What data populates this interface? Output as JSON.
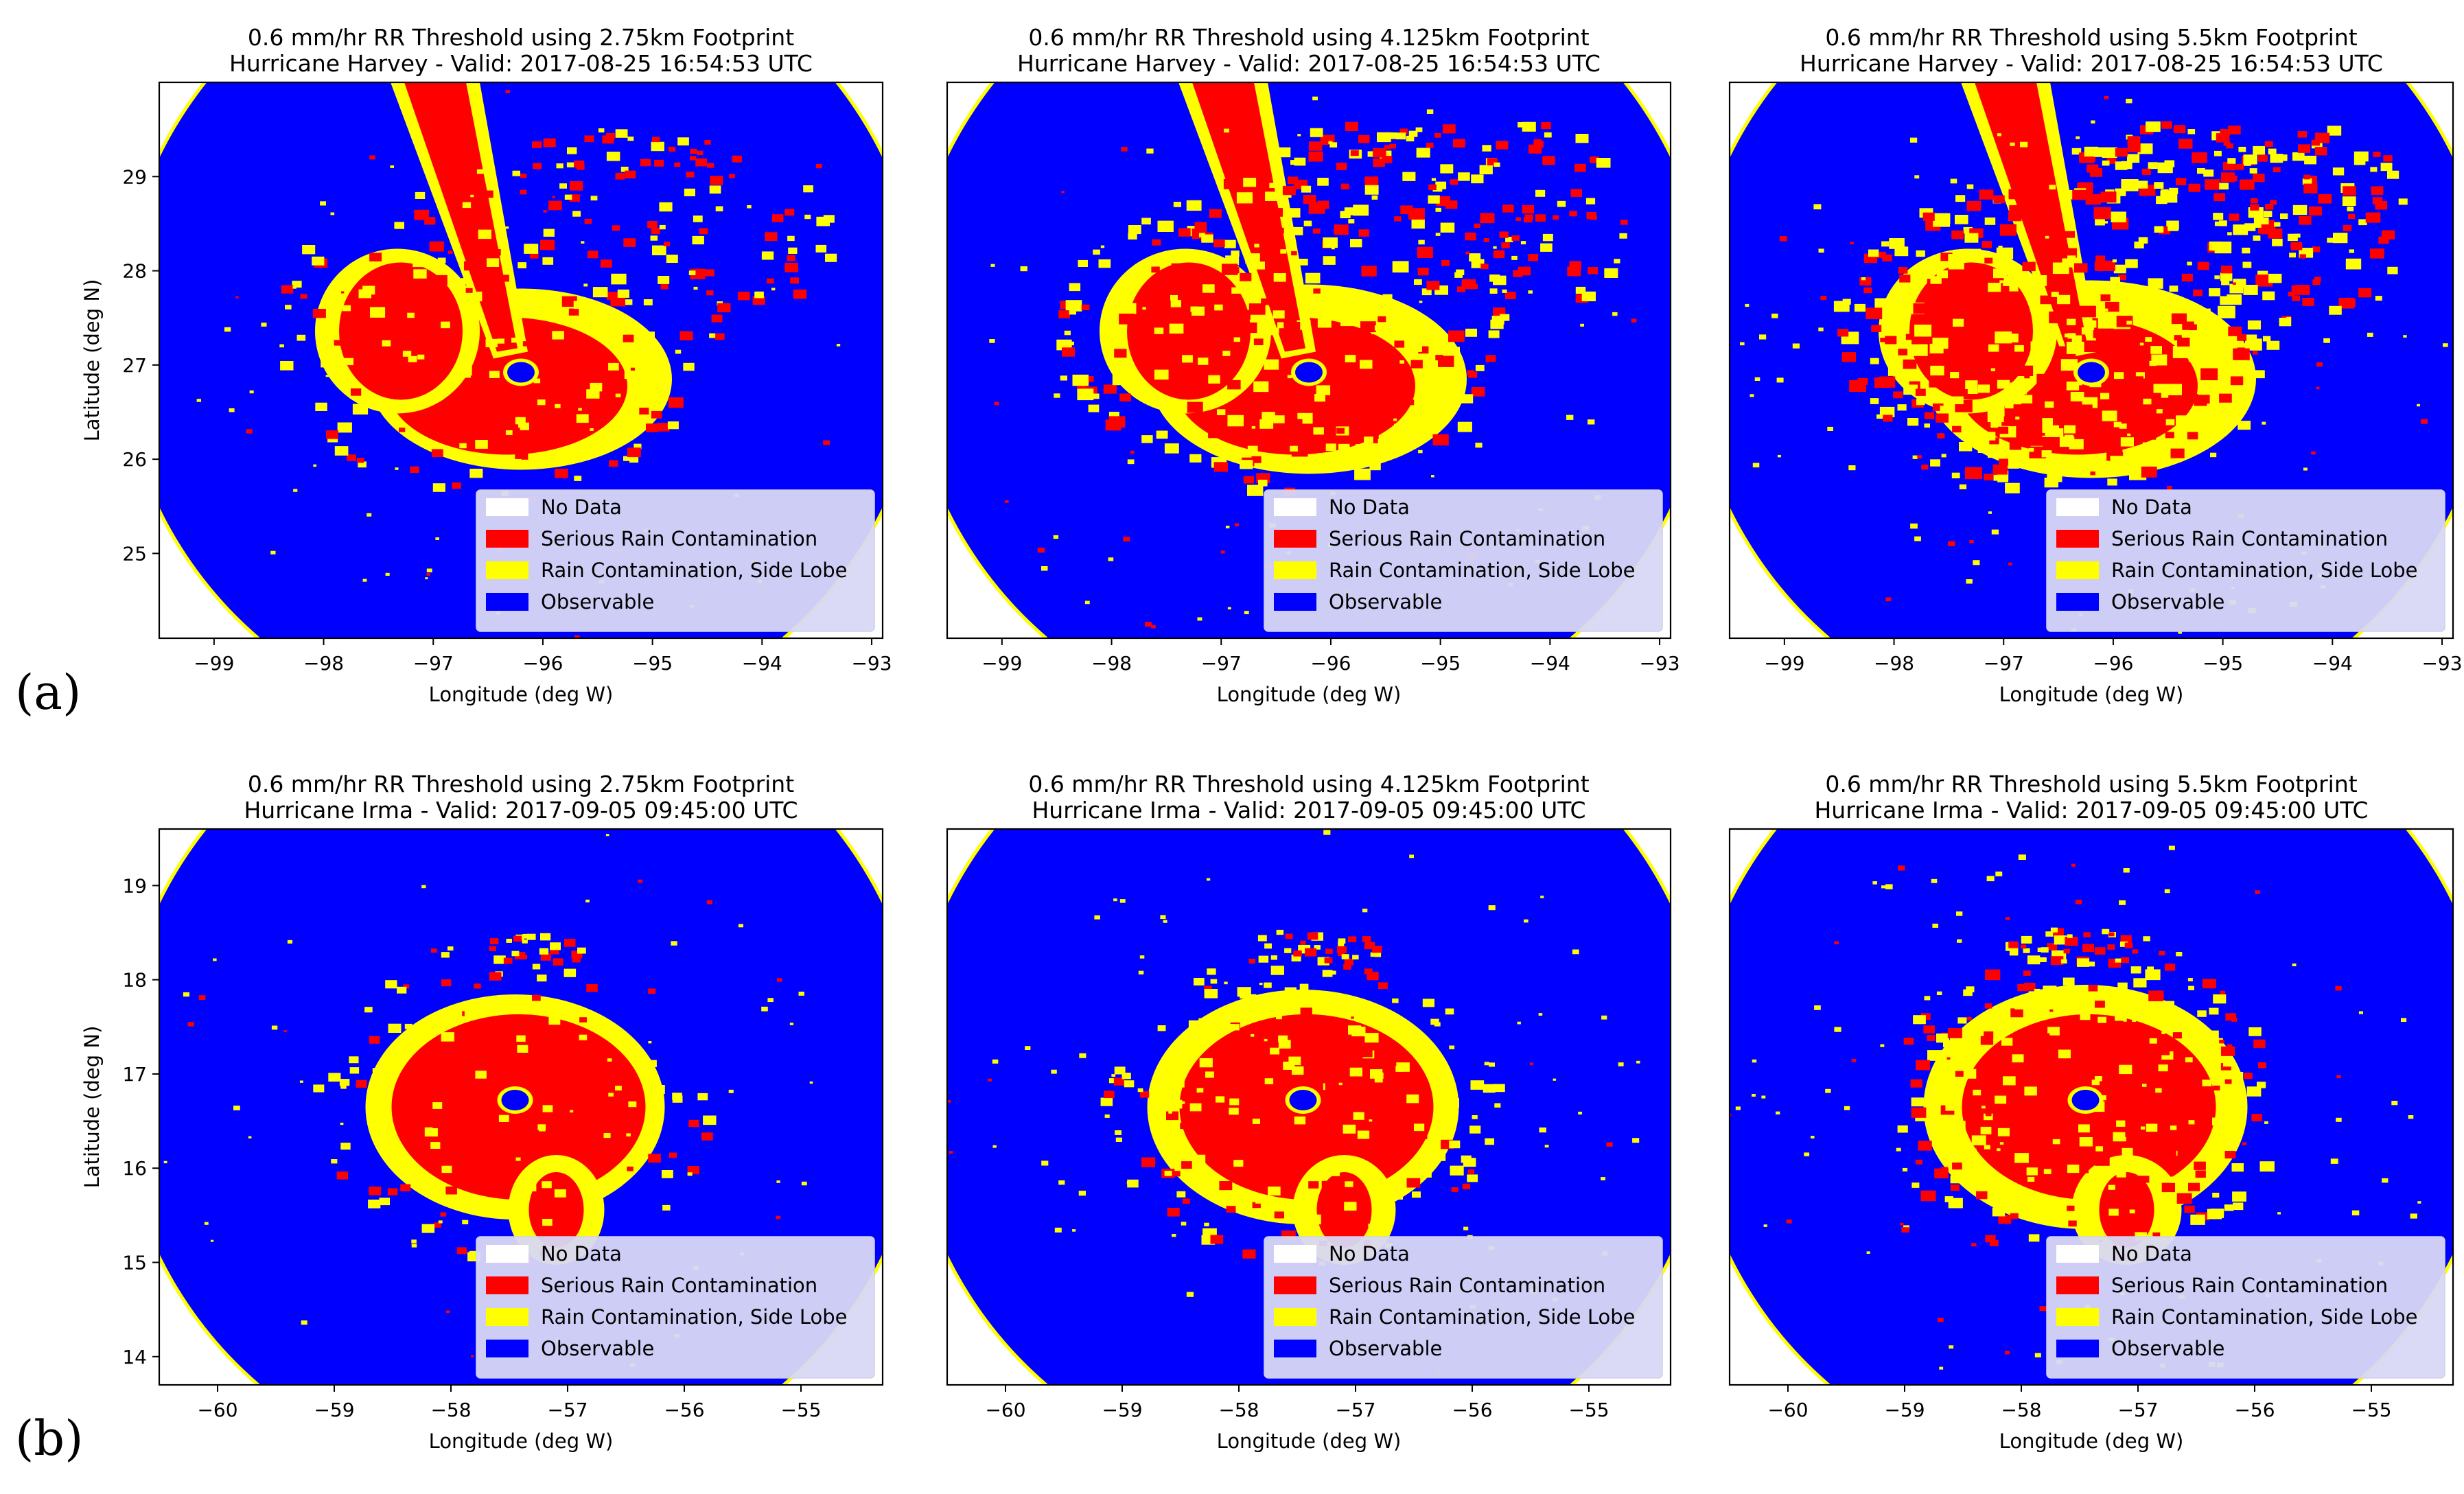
{
  "figure": {
    "row_labels": [
      "(a)",
      "(b)"
    ]
  },
  "colors": {
    "no_data": "#ffffff",
    "serious": "#ff0000",
    "side_lobe": "#ffff00",
    "observable": "#0000ff",
    "legend_bg": "#d8d8f6"
  },
  "chart_data": [
    {
      "type": "heatmap",
      "title": "0.6 mm/hr RR Threshold using 2.75km Footprint",
      "subtitle": "Hurricane Harvey - Valid: 2017-08-25 16:54:53 UTC",
      "xlabel": "Longitude (deg W)",
      "ylabel": "Latitude (deg N)",
      "xlim": [
        -99.5,
        -92.9
      ],
      "ylim": [
        24.1,
        30.0
      ],
      "xticks": [
        -99,
        -98,
        -97,
        -96,
        -95,
        -94,
        -93
      ],
      "yticks": [
        25,
        26,
        27,
        28,
        29
      ],
      "show_ylabel": true,
      "footprint_km": 2.75,
      "center": [
        -96.2,
        26.85
      ],
      "legend": [
        "No Data",
        "Serious Rain Contamination",
        "Rain Contamination, Side Lobe",
        "Observable"
      ],
      "legend_loc": "lower-right"
    },
    {
      "type": "heatmap",
      "title": "0.6 mm/hr RR Threshold using 4.125km Footprint",
      "subtitle": "Hurricane Harvey - Valid: 2017-08-25 16:54:53 UTC",
      "xlabel": "Longitude (deg W)",
      "ylabel": "",
      "xlim": [
        -99.5,
        -92.9
      ],
      "ylim": [
        24.1,
        30.0
      ],
      "xticks": [
        -99,
        -98,
        -97,
        -96,
        -95,
        -94,
        -93
      ],
      "yticks": [],
      "show_ylabel": false,
      "footprint_km": 4.125,
      "center": [
        -96.2,
        26.85
      ],
      "legend": [
        "No Data",
        "Serious Rain Contamination",
        "Rain Contamination, Side Lobe",
        "Observable"
      ],
      "legend_loc": "lower-right"
    },
    {
      "type": "heatmap",
      "title": "0.6 mm/hr RR Threshold using 5.5km Footprint",
      "subtitle": "Hurricane Harvey - Valid: 2017-08-25 16:54:53 UTC",
      "xlabel": "Longitude (deg W)",
      "ylabel": "",
      "xlim": [
        -99.5,
        -92.9
      ],
      "ylim": [
        24.1,
        30.0
      ],
      "xticks": [
        -99,
        -98,
        -97,
        -96,
        -95,
        -94,
        -93
      ],
      "yticks": [],
      "show_ylabel": false,
      "footprint_km": 5.5,
      "center": [
        -96.2,
        26.85
      ],
      "legend": [
        "No Data",
        "Serious Rain Contamination",
        "Rain Contamination, Side Lobe",
        "Observable"
      ],
      "legend_loc": "lower-right"
    },
    {
      "type": "heatmap",
      "title": "0.6 mm/hr RR Threshold using 2.75km Footprint",
      "subtitle": "Hurricane Irma - Valid: 2017-09-05 09:45:00 UTC",
      "xlabel": "Longitude (deg W)",
      "ylabel": "Latitude (deg N)",
      "xlim": [
        -60.5,
        -54.3
      ],
      "ylim": [
        13.7,
        19.6
      ],
      "xticks": [
        -60,
        -59,
        -58,
        -57,
        -56,
        -55
      ],
      "yticks": [
        14,
        15,
        16,
        17,
        18,
        19
      ],
      "show_ylabel": true,
      "footprint_km": 2.75,
      "center": [
        -57.45,
        16.65
      ],
      "legend": [
        "No Data",
        "Serious Rain Contamination",
        "Rain Contamination, Side Lobe",
        "Observable"
      ],
      "legend_loc": "lower-right"
    },
    {
      "type": "heatmap",
      "title": "0.6 mm/hr RR Threshold using 4.125km Footprint",
      "subtitle": "Hurricane Irma - Valid: 2017-09-05 09:45:00 UTC",
      "xlabel": "Longitude (deg W)",
      "ylabel": "",
      "xlim": [
        -60.5,
        -54.3
      ],
      "ylim": [
        13.7,
        19.6
      ],
      "xticks": [
        -60,
        -59,
        -58,
        -57,
        -56,
        -55
      ],
      "yticks": [],
      "show_ylabel": false,
      "footprint_km": 4.125,
      "center": [
        -57.45,
        16.65
      ],
      "legend": [
        "No Data",
        "Serious Rain Contamination",
        "Rain Contamination, Side Lobe",
        "Observable"
      ],
      "legend_loc": "lower-right"
    },
    {
      "type": "heatmap",
      "title": "0.6 mm/hr RR Threshold using 5.5km Footprint",
      "subtitle": "Hurricane Irma - Valid: 2017-09-05 09:45:00 UTC",
      "xlabel": "Longitude (deg W)",
      "ylabel": "",
      "xlim": [
        -60.5,
        -54.3
      ],
      "ylim": [
        13.7,
        19.6
      ],
      "xticks": [
        -60,
        -59,
        -58,
        -57,
        -56,
        -55
      ],
      "yticks": [],
      "show_ylabel": false,
      "footprint_km": 5.5,
      "center": [
        -57.45,
        16.65
      ],
      "legend": [
        "No Data",
        "Serious Rain Contamination",
        "Rain Contamination, Side Lobe",
        "Observable"
      ],
      "legend_loc": "lower-right"
    }
  ]
}
